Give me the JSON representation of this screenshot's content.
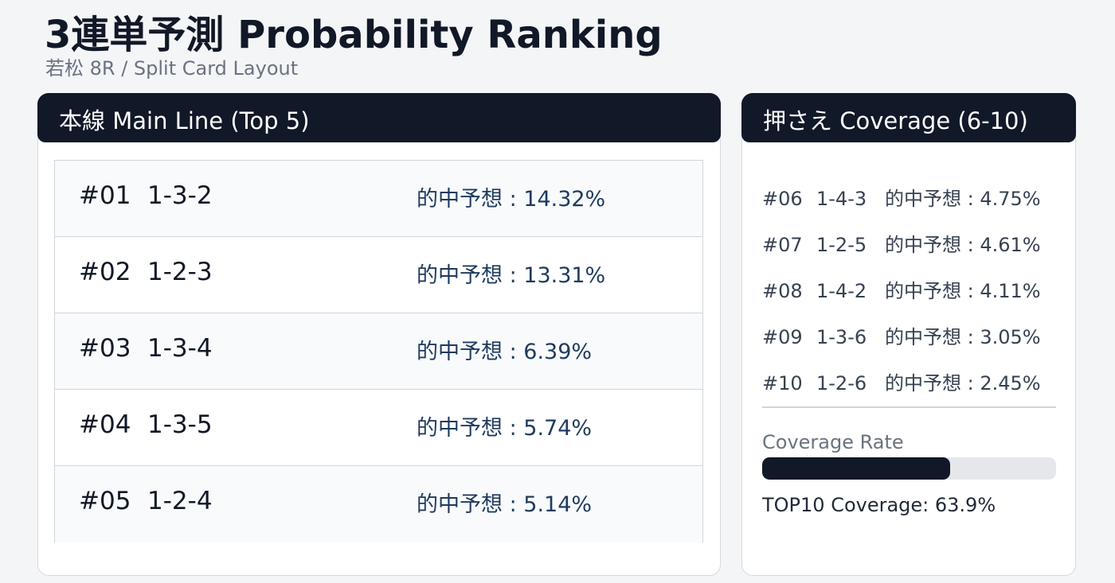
{
  "header": {
    "title": "3連単予測 Probability Ranking",
    "subtitle": "若松 8R / Split Card Layout"
  },
  "main": {
    "title": "本線 Main Line (Top 5)",
    "rows": [
      {
        "rank": "#01",
        "combo": "1-3-2",
        "prob": "的中予想 : 14.32%"
      },
      {
        "rank": "#02",
        "combo": "1-2-3",
        "prob": "的中予想 : 13.31%"
      },
      {
        "rank": "#03",
        "combo": "1-3-4",
        "prob": "的中予想 : 6.39%"
      },
      {
        "rank": "#04",
        "combo": "1-3-5",
        "prob": "的中予想 : 5.74%"
      },
      {
        "rank": "#05",
        "combo": "1-2-4",
        "prob": "的中予想 : 5.14%"
      }
    ]
  },
  "coverage": {
    "title": "押さえ Coverage (6-10)",
    "rows": [
      {
        "rank": "#06",
        "combo": "1-4-3",
        "prob": "的中予想 : 4.75%"
      },
      {
        "rank": "#07",
        "combo": "1-2-5",
        "prob": "的中予想 : 4.61%"
      },
      {
        "rank": "#08",
        "combo": "1-4-2",
        "prob": "的中予想 : 4.11%"
      },
      {
        "rank": "#09",
        "combo": "1-3-6",
        "prob": "的中予想 : 3.05%"
      },
      {
        "rank": "#10",
        "combo": "1-2-6",
        "prob": "的中予想 : 2.45%"
      }
    ],
    "rate_title": "Coverage Rate",
    "rate": 63.9,
    "rate_lim": [
      0,
      100
    ],
    "summary": "TOP10 Coverage: 63.9%"
  }
}
